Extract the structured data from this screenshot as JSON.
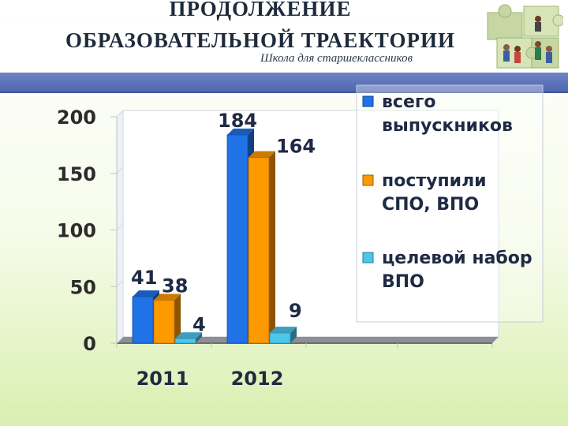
{
  "header": {
    "title_line1": "ПРОДОЛЖЕНИЕ",
    "title_line2": "ОБРАЗОВАТЕЛЬНОЙ ТРАЕКТОРИИ",
    "subtitle": "Школа для старшеклассников"
  },
  "colors": {
    "header_bar": "#5a70b8",
    "series": [
      "#1f73e6",
      "#ff9900",
      "#4cc7ec"
    ]
  },
  "chart_data": {
    "type": "bar",
    "categories": [
      "2011",
      "2012"
    ],
    "series": [
      {
        "name": "всего выпускников",
        "values": [
          41,
          184
        ],
        "color": "#1f73e6"
      },
      {
        "name": "поступили СПО, ВПО",
        "values": [
          38,
          164
        ],
        "color": "#ff9900"
      },
      {
        "name": "целевой набор ВПО",
        "values": [
          4,
          9
        ],
        "color": "#4cc7ec"
      }
    ],
    "data_labels": [
      [
        "41",
        "184"
      ],
      [
        "38",
        "164"
      ],
      [
        "4",
        "9"
      ]
    ],
    "yticks": [
      "0",
      "50",
      "100",
      "150",
      "200"
    ],
    "ylim": [
      0,
      200
    ],
    "grid": false,
    "legend": "right",
    "style": "3d"
  }
}
